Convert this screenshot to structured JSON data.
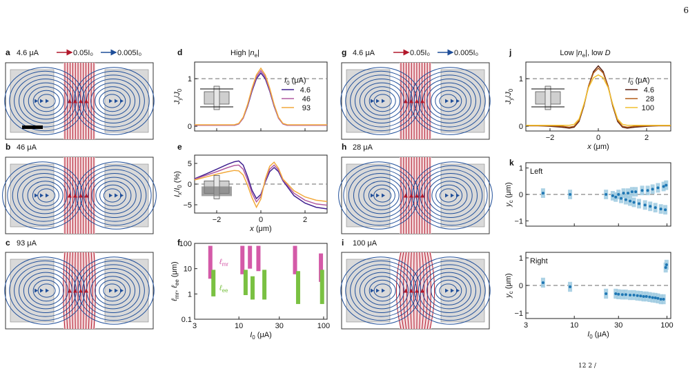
{
  "page_number": "6",
  "panels": {
    "a": {
      "letter": "a",
      "current": "4.6 μA"
    },
    "b": {
      "letter": "b",
      "current": "46 μA"
    },
    "c": {
      "letter": "c",
      "current": "93 μA"
    },
    "g": {
      "letter": "g",
      "current": "4.6 μA"
    },
    "h": {
      "letter": "h",
      "current": "28 μA"
    },
    "i": {
      "letter": "i",
      "current": "100 μA"
    },
    "d": {
      "letter": "d",
      "title": "High |n_e|"
    },
    "e": {
      "letter": "e"
    },
    "f": {
      "letter": "f"
    },
    "j": {
      "letter": "j",
      "title": "Low |n_e|, low D"
    },
    "k": {
      "letter": "k"
    }
  },
  "legend_left": {
    "red": "0.05I₀",
    "blue": "0.005I₀"
  },
  "legend_right": {
    "red": "0.05I₀",
    "blue": "0.005I₀"
  },
  "colors": {
    "red": "#b2182b",
    "blue": "#1f4e99",
    "gray_box": "#d9d9d9",
    "light_blue": "#9ecae1",
    "dot_blue": "#1f77b4"
  },
  "footnote": "12  2  /",
  "chart_data": [
    {
      "panel": "d",
      "type": "line",
      "title": "High |n_e|",
      "xlabel": "",
      "ylabel": "J_y/J_0",
      "xlim": [
        -3,
        3
      ],
      "ylim": [
        -0.1,
        1.35
      ],
      "yticks": [
        0,
        1
      ],
      "xticks": [
        -2,
        0,
        2
      ],
      "legend_title": "I_0 (μA)",
      "reference_line": 1,
      "series": [
        {
          "name": "4.6",
          "color": "#3f1f8f",
          "x": [
            -3,
            -2.5,
            -2,
            -1.5,
            -1.2,
            -1,
            -0.8,
            -0.6,
            -0.4,
            -0.2,
            0,
            0.2,
            0.4,
            0.6,
            0.8,
            1,
            1.2,
            1.5,
            2,
            2.5,
            3
          ],
          "y": [
            0.02,
            0.02,
            0.02,
            0.02,
            0.02,
            0.05,
            0.17,
            0.42,
            0.74,
            1.0,
            1.12,
            1.0,
            0.74,
            0.42,
            0.17,
            0.05,
            0.02,
            0.02,
            0.02,
            0.02,
            0.02
          ]
        },
        {
          "name": "46",
          "color": "#b05aa0",
          "x": [
            -3,
            -2.5,
            -2,
            -1.5,
            -1.2,
            -1,
            -0.8,
            -0.6,
            -0.4,
            -0.2,
            0,
            0.2,
            0.4,
            0.6,
            0.8,
            1,
            1.2,
            1.5,
            2,
            2.5,
            3
          ],
          "y": [
            0.02,
            0.02,
            0.02,
            0.02,
            0.02,
            0.05,
            0.17,
            0.44,
            0.77,
            1.04,
            1.17,
            1.04,
            0.77,
            0.44,
            0.17,
            0.05,
            0.02,
            0.02,
            0.02,
            0.02,
            0.02
          ]
        },
        {
          "name": "93",
          "color": "#f2a93b",
          "x": [
            -3,
            -2.5,
            -2,
            -1.5,
            -1.2,
            -1,
            -0.8,
            -0.6,
            -0.4,
            -0.2,
            0,
            0.2,
            0.4,
            0.6,
            0.8,
            1,
            1.2,
            1.5,
            2,
            2.5,
            3
          ],
          "y": [
            0.03,
            0.03,
            0.03,
            0.03,
            0.03,
            0.06,
            0.19,
            0.46,
            0.8,
            1.08,
            1.22,
            1.08,
            0.8,
            0.46,
            0.19,
            0.06,
            0.03,
            0.03,
            0.03,
            0.03,
            0.03
          ]
        }
      ]
    },
    {
      "panel": "e",
      "type": "line",
      "xlabel": "x (μm)",
      "ylabel": "I_x/I_0 (%)",
      "xlim": [
        -3,
        3
      ],
      "ylim": [
        -7,
        7
      ],
      "yticks": [
        -5,
        0,
        5
      ],
      "xticks": [
        -2,
        0,
        2
      ],
      "reference_line": 0,
      "series": [
        {
          "name": "4.6",
          "color": "#3f1f8f",
          "x": [
            -3,
            -2.5,
            -2,
            -1.5,
            -1.2,
            -1,
            -0.8,
            -0.6,
            -0.4,
            -0.2,
            0,
            0.2,
            0.4,
            0.6,
            0.8,
            1,
            1.5,
            2,
            2.5,
            3
          ],
          "y": [
            1.3,
            2.4,
            3.6,
            4.8,
            5.4,
            5.6,
            4.6,
            1.8,
            -1.5,
            -3.5,
            -2.5,
            0.5,
            3.0,
            4.0,
            3.0,
            0.8,
            -2.8,
            -4.6,
            -5.6,
            -6.0
          ]
        },
        {
          "name": "46",
          "color": "#b05aa0",
          "x": [
            -3,
            -2.5,
            -2,
            -1.5,
            -1.2,
            -1,
            -0.8,
            -0.6,
            -0.4,
            -0.2,
            0,
            0.2,
            0.4,
            0.6,
            0.8,
            1,
            1.5,
            2,
            2.5,
            3
          ],
          "y": [
            1.2,
            2.1,
            3.0,
            4.0,
            4.5,
            4.6,
            3.6,
            1.0,
            -2.2,
            -4.3,
            -3.0,
            0.8,
            3.6,
            4.6,
            3.4,
            1.0,
            -2.2,
            -3.9,
            -4.8,
            -5.1
          ]
        },
        {
          "name": "93",
          "color": "#f2a93b",
          "x": [
            -3,
            -2.5,
            -2,
            -1.5,
            -1.2,
            -1,
            -0.8,
            -0.6,
            -0.4,
            -0.2,
            0,
            0.2,
            0.4,
            0.6,
            0.8,
            1,
            1.5,
            2,
            2.5,
            3
          ],
          "y": [
            1.0,
            1.7,
            2.4,
            3.0,
            3.3,
            3.2,
            2.2,
            -0.3,
            -3.3,
            -5.6,
            -3.6,
            1.2,
            4.3,
            5.3,
            3.8,
            1.2,
            -1.6,
            -3.1,
            -3.9,
            -4.2
          ]
        }
      ]
    },
    {
      "panel": "f",
      "type": "bar",
      "xlabel": "I_0 (μA)",
      "ylabel": "ℓ_mr, ℓ_ee (μm)",
      "xscale": "log",
      "yscale": "log",
      "xlim": [
        3,
        110
      ],
      "ylim": [
        0.1,
        100
      ],
      "xticks": [
        3,
        10,
        30,
        100
      ],
      "yticks": [
        0.1,
        1,
        10,
        100
      ],
      "legend": [
        "ℓ_mr",
        "ℓ_ee"
      ],
      "mr_color": "#d45aa8",
      "ee_color": "#7ac142",
      "mr_bars": [
        [
          4.6,
          4,
          80
        ],
        [
          11,
          6,
          80
        ],
        [
          13.5,
          10,
          80
        ],
        [
          17,
          8,
          80
        ],
        [
          46,
          6,
          80
        ],
        [
          93,
          3,
          40
        ]
      ],
      "ee_bars": [
        [
          5,
          0.8,
          9
        ],
        [
          12,
          0.9,
          9
        ],
        [
          14.5,
          0.6,
          5
        ],
        [
          20,
          0.6,
          9
        ],
        [
          50,
          0.4,
          8
        ],
        [
          96,
          0.4,
          9
        ]
      ]
    },
    {
      "panel": "j",
      "type": "line",
      "title": "Low |n_e|, low D",
      "xlabel": "x (μm)",
      "ylabel": "J_y/J_0",
      "xlim": [
        -3,
        3
      ],
      "ylim": [
        -0.1,
        1.35
      ],
      "yticks": [
        0,
        1
      ],
      "xticks": [
        -2,
        0,
        2
      ],
      "legend_title": "I_0 (μA)",
      "reference_line": 1,
      "series": [
        {
          "name": "4.6",
          "color": "#5a1f10",
          "x": [
            -3,
            -2.5,
            -2,
            -1.5,
            -1.2,
            -1,
            -0.8,
            -0.6,
            -0.4,
            -0.2,
            0,
            0.2,
            0.4,
            0.6,
            0.8,
            1,
            1.2,
            1.5,
            2,
            2.5,
            3
          ],
          "y": [
            0.01,
            0.01,
            0.0,
            -0.02,
            -0.04,
            -0.02,
            0.1,
            0.42,
            0.85,
            1.15,
            1.27,
            1.15,
            0.85,
            0.42,
            0.1,
            -0.02,
            -0.04,
            -0.02,
            0.0,
            0.01,
            0.01
          ]
        },
        {
          "name": "28",
          "color": "#b45c16",
          "x": [
            -3,
            -2.5,
            -2,
            -1.5,
            -1.2,
            -1,
            -0.8,
            -0.6,
            -0.4,
            -0.2,
            0,
            0.2,
            0.4,
            0.6,
            0.8,
            1,
            1.2,
            1.5,
            2,
            2.5,
            3
          ],
          "y": [
            0.01,
            0.01,
            0.01,
            0.0,
            -0.02,
            0.0,
            0.12,
            0.44,
            0.85,
            1.12,
            1.22,
            1.12,
            0.85,
            0.44,
            0.12,
            0.0,
            -0.02,
            0.0,
            0.01,
            0.01,
            0.01
          ]
        },
        {
          "name": "100",
          "color": "#f2c12e",
          "x": [
            -3,
            -2.5,
            -2,
            -1.5,
            -1.2,
            -1,
            -0.8,
            -0.6,
            -0.4,
            -0.2,
            0,
            0.2,
            0.4,
            0.6,
            0.8,
            1,
            1.2,
            1.5,
            2,
            2.5,
            3
          ],
          "y": [
            0.02,
            0.02,
            0.02,
            0.02,
            0.02,
            0.04,
            0.15,
            0.46,
            0.82,
            1.02,
            1.08,
            1.02,
            0.82,
            0.46,
            0.15,
            0.04,
            0.02,
            0.02,
            0.02,
            0.02,
            0.02
          ]
        }
      ]
    },
    {
      "panel": "k-left",
      "type": "scatter",
      "annotation": "Left",
      "xlabel": "",
      "ylabel": "y_c (μm)",
      "xscale": "log",
      "xlim": [
        3,
        110
      ],
      "ylim": [
        -1.2,
        1.2
      ],
      "yticks": [
        -1,
        0,
        1
      ],
      "reference_line": 0,
      "points": [
        [
          4.6,
          0.05
        ],
        [
          9,
          0
        ],
        [
          22,
          0
        ],
        [
          26,
          -0.05
        ],
        [
          28,
          -0.1
        ],
        [
          30,
          0.0
        ],
        [
          32,
          -0.15
        ],
        [
          34,
          0.05
        ],
        [
          36,
          -0.2
        ],
        [
          38,
          0.05
        ],
        [
          40,
          -0.25
        ],
        [
          42,
          0.1
        ],
        [
          44,
          -0.3
        ],
        [
          46,
          0.1
        ],
        [
          50,
          -0.35
        ],
        [
          54,
          0.15
        ],
        [
          58,
          -0.4
        ],
        [
          62,
          0.15
        ],
        [
          66,
          -0.45
        ],
        [
          70,
          0.2
        ],
        [
          75,
          -0.5
        ],
        [
          80,
          0.25
        ],
        [
          86,
          -0.55
        ],
        [
          92,
          0.3
        ],
        [
          96,
          -0.58
        ],
        [
          98,
          0.35
        ]
      ]
    },
    {
      "panel": "k-right",
      "type": "scatter",
      "annotation": "Right",
      "xlabel": "I_0 (μA)",
      "ylabel": "y_c (μm)",
      "xscale": "log",
      "xlim": [
        3,
        110
      ],
      "ylim": [
        -1.2,
        1.2
      ],
      "xticks": [
        3,
        10,
        30,
        100
      ],
      "yticks": [
        -1,
        0,
        1
      ],
      "reference_line": 0,
      "points": [
        [
          4.6,
          0.1
        ],
        [
          9,
          -0.05
        ],
        [
          22,
          -0.3
        ],
        [
          28,
          -0.3
        ],
        [
          30,
          -0.32
        ],
        [
          33,
          -0.33
        ],
        [
          36,
          -0.33
        ],
        [
          40,
          -0.35
        ],
        [
          44,
          -0.35
        ],
        [
          48,
          -0.37
        ],
        [
          52,
          -0.38
        ],
        [
          56,
          -0.4
        ],
        [
          60,
          -0.4
        ],
        [
          65,
          -0.42
        ],
        [
          70,
          -0.44
        ],
        [
          75,
          -0.45
        ],
        [
          80,
          -0.47
        ],
        [
          86,
          -0.5
        ],
        [
          92,
          -0.5
        ],
        [
          97,
          0.65
        ],
        [
          99,
          0.75
        ]
      ]
    }
  ]
}
